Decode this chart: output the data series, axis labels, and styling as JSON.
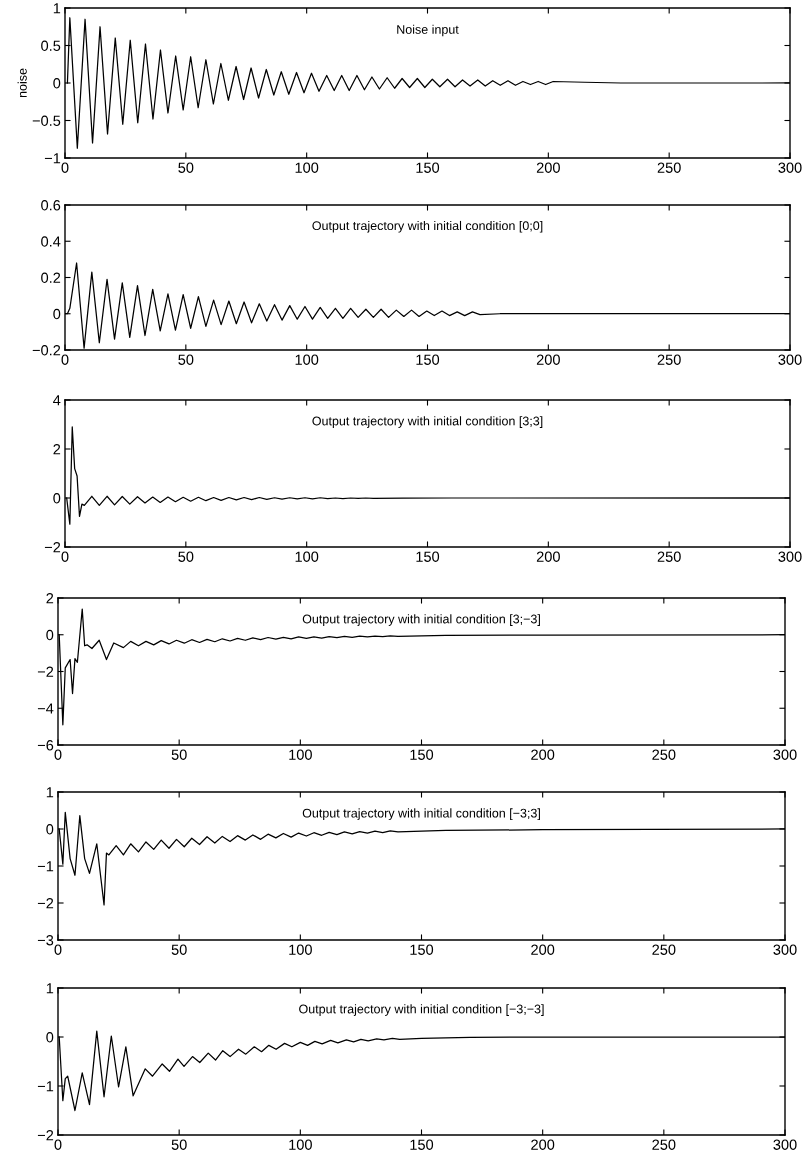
{
  "chart_data": [
    {
      "type": "line",
      "title": "Noise input",
      "ylabel": "noise",
      "xlim": [
        0,
        300
      ],
      "xticks": [
        0,
        50,
        100,
        150,
        200,
        250,
        300
      ],
      "ylim": [
        -1,
        1
      ],
      "yticks": [
        -1,
        -0.5,
        0,
        0.5,
        1
      ],
      "series": [
        {
          "color": "#000000",
          "x": [
            1,
            2,
            5.1,
            8.3,
            11.4,
            14.5,
            17.6,
            20.8,
            23.9,
            27,
            30.1,
            33.3,
            36.4,
            39.5,
            42.6,
            45.8,
            48.9,
            52,
            55.1,
            58.3,
            61.4,
            64.5,
            67.6,
            70.8,
            73.9,
            77,
            80.1,
            83.3,
            86.4,
            89.5,
            92.6,
            95.8,
            98.9,
            102,
            105.1,
            108.3,
            111.4,
            114.5,
            117.6,
            120.8,
            123.9,
            127,
            130.1,
            133.3,
            136.4,
            139.5,
            142.6,
            145.8,
            148.9,
            152,
            155.1,
            158.3,
            161.4,
            164.5,
            167.6,
            170.8,
            173.9,
            177,
            180.1,
            183.3,
            186.4,
            189.5,
            192.6,
            195.8,
            198.9,
            202,
            215,
            230,
            300
          ],
          "values": [
            0,
            0.87,
            -0.87,
            0.85,
            -0.8,
            0.75,
            -0.68,
            0.6,
            -0.55,
            0.57,
            -0.53,
            0.52,
            -0.48,
            0.44,
            -0.4,
            0.36,
            -0.36,
            0.35,
            -0.33,
            0.31,
            -0.28,
            0.26,
            -0.23,
            0.22,
            -0.22,
            0.2,
            -0.2,
            0.18,
            -0.16,
            0.15,
            -0.15,
            0.14,
            -0.13,
            0.13,
            -0.11,
            0.1,
            -0.1,
            0.1,
            -0.1,
            0.1,
            -0.09,
            0.08,
            -0.08,
            0.07,
            -0.07,
            0.06,
            -0.06,
            0.06,
            -0.06,
            0.05,
            -0.05,
            0.05,
            -0.05,
            0.04,
            -0.04,
            0.04,
            -0.04,
            0.03,
            -0.03,
            0.03,
            -0.03,
            0.02,
            -0.02,
            0.02,
            -0.02,
            0.02,
            0.01,
            0,
            0
          ]
        }
      ]
    },
    {
      "type": "line",
      "title": "Output trajectory with initial condition [0;0]",
      "xlim": [
        0,
        300
      ],
      "xticks": [
        0,
        50,
        100,
        150,
        200,
        250,
        300
      ],
      "ylim": [
        -0.2,
        0.6
      ],
      "yticks": [
        -0.2,
        0,
        0.2,
        0.4,
        0.6
      ],
      "series": [
        {
          "color": "#000000",
          "x": [
            0,
            1,
            2,
            4.8,
            7.9,
            11.1,
            14.2,
            17.4,
            20.5,
            23.7,
            26.8,
            30,
            33.1,
            36.3,
            39.4,
            42.6,
            45.7,
            48.9,
            52,
            55.2,
            58.3,
            61.5,
            64.6,
            67.8,
            70.9,
            74.1,
            77.2,
            80.4,
            83.5,
            86.7,
            89.8,
            93,
            96.1,
            99.3,
            102.4,
            105.6,
            108.7,
            111.9,
            115,
            118.2,
            121.3,
            124.5,
            127.6,
            130.8,
            133.9,
            137.1,
            140.2,
            143.4,
            146.5,
            149.7,
            152.8,
            156,
            159.1,
            162.3,
            165.4,
            168.6,
            171.7,
            180,
            200,
            300
          ],
          "values": [
            0,
            0,
            0.03,
            0.28,
            -0.19,
            0.23,
            -0.16,
            0.19,
            -0.14,
            0.17,
            -0.13,
            0.155,
            -0.12,
            0.135,
            -0.095,
            0.11,
            -0.09,
            0.105,
            -0.08,
            0.095,
            -0.07,
            0.075,
            -0.06,
            0.07,
            -0.055,
            0.065,
            -0.05,
            0.055,
            -0.04,
            0.05,
            -0.035,
            0.045,
            -0.03,
            0.04,
            -0.03,
            0.035,
            -0.025,
            0.03,
            -0.025,
            0.03,
            -0.02,
            0.025,
            -0.02,
            0.025,
            -0.02,
            0.02,
            -0.015,
            0.02,
            -0.015,
            0.015,
            -0.01,
            0.015,
            -0.01,
            0.01,
            -0.01,
            0.01,
            -0.005,
            0,
            0,
            0
          ]
        }
      ]
    },
    {
      "type": "line",
      "title": "Output trajectory with initial condition [3;3]",
      "xlim": [
        0,
        300
      ],
      "xticks": [
        0,
        50,
        100,
        150,
        200,
        250,
        300
      ],
      "ylim": [
        -2,
        4
      ],
      "yticks": [
        -2,
        0,
        2,
        4
      ],
      "series": [
        {
          "color": "#000000",
          "x": [
            0.7,
            2,
            3,
            4,
            5,
            6,
            7,
            8,
            11.1,
            14.2,
            17.4,
            20.5,
            23.7,
            26.8,
            30,
            33.1,
            36.3,
            39.4,
            42.6,
            45.7,
            48.9,
            52,
            55.2,
            58.3,
            61.5,
            64.6,
            67.8,
            70.9,
            74.1,
            77.2,
            80.4,
            83.5,
            86.7,
            89.8,
            93,
            96.1,
            99.3,
            102.4,
            105.6,
            108.7,
            111.9,
            115,
            118.2,
            121.3,
            124.5,
            127.6,
            140,
            160,
            300
          ],
          "values": [
            0,
            -1.07,
            2.9,
            1.2,
            0.9,
            -0.75,
            -0.25,
            -0.3,
            0.07,
            -0.3,
            0.07,
            -0.28,
            0.06,
            -0.25,
            0.05,
            -0.2,
            0.04,
            -0.18,
            0.04,
            -0.15,
            0.03,
            -0.13,
            0.03,
            -0.11,
            0.02,
            -0.1,
            0.02,
            -0.08,
            0.02,
            -0.07,
            0.02,
            -0.06,
            0.01,
            -0.05,
            0.01,
            -0.04,
            0.01,
            -0.04,
            0.01,
            -0.03,
            0,
            -0.03,
            0,
            -0.02,
            0,
            -0.02,
            -0.01,
            0,
            0
          ]
        }
      ]
    },
    {
      "type": "line",
      "title": "Output trajectory with initial condition [3;−3]",
      "xlim": [
        0,
        300
      ],
      "xticks": [
        0,
        50,
        100,
        150,
        200,
        250,
        300
      ],
      "ylim": [
        -6,
        2
      ],
      "yticks": [
        -6,
        -4,
        -2,
        0,
        2
      ],
      "series": [
        {
          "color": "#000000",
          "x": [
            0.5,
            2,
            3,
            5,
            6,
            7,
            8,
            10,
            11,
            12,
            14,
            17,
            20,
            23,
            27,
            30,
            33.2,
            36.3,
            39.5,
            42.6,
            45.8,
            48.9,
            52.1,
            55.2,
            58.4,
            61.5,
            64.7,
            67.8,
            71,
            74.1,
            77.3,
            80.4,
            83.6,
            86.7,
            89.9,
            93,
            96.2,
            99.3,
            102.5,
            105.6,
            108.8,
            111.9,
            115.1,
            118.2,
            121.4,
            124.5,
            127.7,
            130.8,
            134,
            137.1,
            140.3,
            160,
            200,
            300
          ],
          "values": [
            0,
            -4.9,
            -1.8,
            -1.35,
            -3.2,
            -1.3,
            -1.5,
            1.4,
            -0.6,
            -0.55,
            -0.75,
            -0.3,
            -1.35,
            -0.45,
            -0.7,
            -0.36,
            -0.6,
            -0.36,
            -0.55,
            -0.32,
            -0.5,
            -0.3,
            -0.46,
            -0.27,
            -0.42,
            -0.25,
            -0.38,
            -0.22,
            -0.34,
            -0.2,
            -0.3,
            -0.17,
            -0.27,
            -0.15,
            -0.24,
            -0.14,
            -0.22,
            -0.12,
            -0.2,
            -0.11,
            -0.18,
            -0.1,
            -0.16,
            -0.09,
            -0.14,
            -0.08,
            -0.12,
            -0.07,
            -0.1,
            -0.06,
            -0.09,
            -0.04,
            -0.02,
            0
          ]
        }
      ]
    },
    {
      "type": "line",
      "title": "Output trajectory with initial condition [−3;3]",
      "xlim": [
        0,
        300
      ],
      "xticks": [
        0,
        50,
        100,
        150,
        200,
        250,
        300
      ],
      "ylim": [
        -3,
        1
      ],
      "yticks": [
        -3,
        -2,
        -1,
        0,
        1
      ],
      "series": [
        {
          "color": "#000000",
          "x": [
            0.5,
            2,
            3,
            5,
            7,
            9,
            11,
            13,
            16,
            19,
            20,
            21,
            24,
            27,
            30,
            33.2,
            36.3,
            39.5,
            42.6,
            45.8,
            48.9,
            52.1,
            55.2,
            58.4,
            61.5,
            64.7,
            67.8,
            71,
            74.1,
            77.3,
            80.4,
            83.6,
            86.7,
            89.9,
            93,
            96.2,
            99.3,
            102.5,
            105.6,
            108.8,
            111.9,
            115.1,
            118.2,
            121.4,
            124.5,
            127.7,
            130.8,
            134,
            137.1,
            140.3,
            160,
            200,
            300
          ],
          "values": [
            0,
            -0.95,
            0.45,
            -0.8,
            -1.25,
            0.36,
            -0.8,
            -1.2,
            -0.4,
            -2.05,
            -0.65,
            -0.7,
            -0.45,
            -0.7,
            -0.4,
            -0.62,
            -0.35,
            -0.55,
            -0.3,
            -0.52,
            -0.28,
            -0.48,
            -0.25,
            -0.42,
            -0.21,
            -0.38,
            -0.2,
            -0.34,
            -0.18,
            -0.3,
            -0.16,
            -0.28,
            -0.14,
            -0.24,
            -0.12,
            -0.22,
            -0.11,
            -0.19,
            -0.1,
            -0.17,
            -0.09,
            -0.15,
            -0.08,
            -0.13,
            -0.07,
            -0.11,
            -0.06,
            -0.1,
            -0.05,
            -0.08,
            -0.04,
            -0.02,
            0
          ]
        }
      ]
    },
    {
      "type": "line",
      "title": "Output trajectory with initial condition [−3;−3]",
      "xlim": [
        0,
        300
      ],
      "xticks": [
        0,
        50,
        100,
        150,
        200,
        250,
        300
      ],
      "ylim": [
        -2,
        1
      ],
      "yticks": [
        -2,
        -1,
        0,
        1
      ],
      "series": [
        {
          "color": "#000000",
          "x": [
            0.5,
            2,
            3,
            4,
            7,
            10,
            13,
            16,
            19,
            22,
            25,
            28,
            31,
            36,
            39,
            43,
            46,
            49.5,
            52,
            55.5,
            58.5,
            62,
            65,
            68,
            71,
            74.5,
            77.5,
            81,
            84,
            87,
            90,
            93.5,
            96.5,
            100,
            103,
            106,
            109,
            112.5,
            115.5,
            119,
            122,
            125,
            128,
            131.5,
            134.5,
            138,
            141,
            150,
            170,
            200,
            300
          ],
          "values": [
            0,
            -1.3,
            -0.85,
            -0.8,
            -1.5,
            -0.73,
            -1.38,
            0.12,
            -1.22,
            0.02,
            -1.02,
            -0.2,
            -1.2,
            -0.65,
            -0.8,
            -0.55,
            -0.7,
            -0.45,
            -0.6,
            -0.4,
            -0.52,
            -0.33,
            -0.47,
            -0.28,
            -0.4,
            -0.25,
            -0.35,
            -0.2,
            -0.3,
            -0.17,
            -0.25,
            -0.13,
            -0.2,
            -0.11,
            -0.17,
            -0.09,
            -0.14,
            -0.07,
            -0.12,
            -0.06,
            -0.1,
            -0.05,
            -0.08,
            -0.04,
            -0.06,
            -0.03,
            -0.05,
            -0.03,
            -0.01,
            0,
            0
          ]
        }
      ]
    }
  ]
}
